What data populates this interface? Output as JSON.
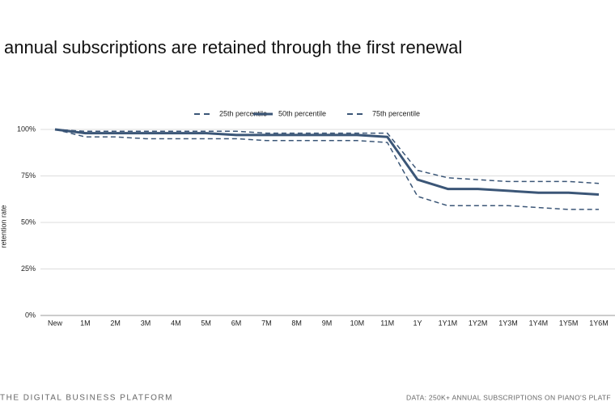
{
  "chart_data": {
    "type": "line",
    "title": "annual subscriptions are retained through the first renewal",
    "ylabel": "retention rate",
    "footer_left": "THE DIGITAL BUSINESS PLATFORM",
    "footer_right": "DATA: 250K+ ANNUAL SUBSCRIPTIONS ON PIANO'S PLATF",
    "categories": [
      "New",
      "1M",
      "2M",
      "3M",
      "4M",
      "5M",
      "6M",
      "7M",
      "8M",
      "9M",
      "10M",
      "11M",
      "1Y",
      "1Y1M",
      "1Y2M",
      "1Y3M",
      "1Y4M",
      "1Y5M",
      "1Y6M"
    ],
    "series": [
      {
        "name": "25th percentile",
        "color": "#3b5677",
        "style": "dashed",
        "values": [
          100,
          96,
          96,
          95,
          95,
          95,
          95,
          94,
          94,
          94,
          94,
          93,
          64,
          59,
          59,
          59,
          58,
          57,
          57
        ]
      },
      {
        "name": "50th percentile",
        "color": "#3b5677",
        "style": "solid",
        "values": [
          100,
          98,
          98,
          98,
          98,
          98,
          97,
          97,
          97,
          97,
          97,
          96,
          73,
          68,
          68,
          67,
          66,
          66,
          65
        ]
      },
      {
        "name": "75th percentile",
        "color": "#3b5677",
        "style": "dashed",
        "values": [
          100,
          99,
          99,
          99,
          99,
          99,
          99,
          98,
          98,
          98,
          98,
          98,
          78,
          74,
          73,
          72,
          72,
          72,
          71
        ]
      }
    ],
    "ylim": [
      0,
      100
    ],
    "yticks": [
      {
        "value": 0,
        "label": "0%"
      },
      {
        "value": 25,
        "label": "25%"
      },
      {
        "value": 50,
        "label": "50%"
      },
      {
        "value": 75,
        "label": "75%"
      },
      {
        "value": 100,
        "label": "100%"
      }
    ],
    "grid": true,
    "legend": "top"
  }
}
